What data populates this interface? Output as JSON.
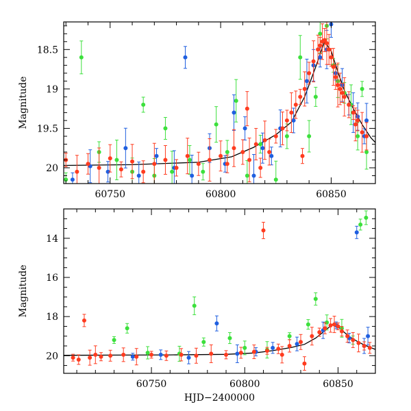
{
  "colors": {
    "red": "#ff3b1f",
    "blue": "#1f5fe0",
    "green": "#3ce03c",
    "model": "#000000"
  },
  "chart_data": [
    {
      "type": "scatter",
      "panel": "top",
      "xlabel": "",
      "ylabel": "Magnitude",
      "xlim": [
        60729,
        60870
      ],
      "ylim": [
        20.2,
        18.15
      ],
      "y_inverted": true,
      "x_ticks": [
        60750,
        60800,
        60850
      ],
      "y_ticks": [
        18.5,
        19,
        19.5,
        20
      ],
      "x_tick_labels": [
        "60750",
        "60800",
        "60850"
      ],
      "y_tick_labels": [
        "18.5",
        "19",
        "19.5",
        "20"
      ],
      "has_error_bars": true,
      "model_curve": {
        "x": [
          60729,
          60760,
          60790,
          60805,
          60815,
          60825,
          60832,
          60838,
          60843,
          60847,
          60850,
          60853,
          60856,
          60860,
          60864,
          60868,
          60870
        ],
        "y": [
          19.97,
          19.96,
          19.93,
          19.86,
          19.74,
          19.58,
          19.42,
          19.1,
          18.72,
          18.4,
          18.52,
          18.78,
          19.02,
          19.25,
          19.45,
          19.62,
          19.68
        ]
      },
      "series": [
        {
          "color": "red",
          "points": [
            [
              60730,
              19.9
            ],
            [
              60735,
              20.05
            ],
            [
              60740,
              19.95
            ],
            [
              60745,
              20.0
            ],
            [
              60750,
              19.88
            ],
            [
              60755,
              20.02
            ],
            [
              60760,
              19.92
            ],
            [
              60765,
              20.05
            ],
            [
              60770,
              19.95
            ],
            [
              60775,
              19.9
            ],
            [
              60780,
              20.0
            ],
            [
              60785,
              19.85
            ],
            [
              60790,
              19.95
            ],
            [
              60795,
              19.9
            ],
            [
              60800,
              19.85
            ],
            [
              60803,
              19.95
            ],
            [
              60806,
              19.75
            ],
            [
              60810,
              19.8
            ],
            [
              60813,
              19.9
            ],
            [
              60816,
              19.7
            ],
            [
              60818,
              20.0
            ],
            [
              60820,
              19.65
            ],
            [
              60822,
              19.8
            ],
            [
              60825,
              19.6
            ],
            [
              60828,
              19.5
            ],
            [
              60830,
              19.4
            ],
            [
              60832,
              19.3
            ],
            [
              60834,
              19.2
            ],
            [
              60836,
              19.1
            ],
            [
              60838,
              19.0
            ],
            [
              60840,
              18.8
            ],
            [
              60842,
              18.65
            ],
            [
              60844,
              18.5
            ],
            [
              60845,
              18.45
            ],
            [
              60846,
              18.4
            ],
            [
              60847,
              18.38
            ],
            [
              60848,
              18.42
            ],
            [
              60849,
              18.5
            ],
            [
              60850,
              18.6
            ],
            [
              60851,
              18.72
            ],
            [
              60852,
              18.85
            ],
            [
              60853,
              18.95
            ],
            [
              60854,
              19.0
            ],
            [
              60855,
              19.05
            ],
            [
              60856,
              19.1
            ],
            [
              60858,
              19.2
            ],
            [
              60860,
              19.3
            ],
            [
              60861,
              19.45
            ],
            [
              60862,
              19.4
            ],
            [
              60864,
              19.55
            ],
            [
              60866,
              19.6
            ],
            [
              60837,
              19.85
            ],
            [
              60812,
              19.25
            ]
          ]
        },
        {
          "color": "blue",
          "points": [
            [
              60733,
              20.15
            ],
            [
              60741,
              19.98
            ],
            [
              60749,
              20.05
            ],
            [
              60757,
              19.75
            ],
            [
              60763,
              20.1
            ],
            [
              60771,
              19.85
            ],
            [
              60779,
              20.0
            ],
            [
              60784,
              18.6
            ],
            [
              60787,
              20.1
            ],
            [
              60795,
              19.75
            ],
            [
              60802,
              19.95
            ],
            [
              60806,
              19.3
            ],
            [
              60811,
              19.5
            ],
            [
              60815,
              20.1
            ],
            [
              60819,
              19.75
            ],
            [
              60823,
              19.85
            ],
            [
              60827,
              19.5
            ],
            [
              60833,
              19.4
            ],
            [
              60839,
              18.9
            ],
            [
              60842,
              18.7
            ],
            [
              60845,
              18.6
            ],
            [
              60848,
              18.5
            ],
            [
              60850,
              18.18
            ],
            [
              60852,
              18.8
            ],
            [
              60855,
              18.95
            ],
            [
              60858,
              19.2
            ],
            [
              60860,
              19.3
            ],
            [
              60862,
              19.35
            ],
            [
              60865,
              19.6
            ],
            [
              60866,
              19.4
            ]
          ]
        },
        {
          "color": "green",
          "points": [
            [
              60730,
              20.15
            ],
            [
              60737,
              18.6
            ],
            [
              60745,
              19.8
            ],
            [
              60753,
              19.9
            ],
            [
              60760,
              20.05
            ],
            [
              60765,
              19.2
            ],
            [
              60770,
              20.1
            ],
            [
              60775,
              19.5
            ],
            [
              60778,
              20.05
            ],
            [
              60786,
              19.9
            ],
            [
              60792,
              20.05
            ],
            [
              60798,
              19.45
            ],
            [
              60803,
              19.8
            ],
            [
              60807,
              19.15
            ],
            [
              60812,
              20.1
            ],
            [
              60818,
              19.7
            ],
            [
              60825,
              20.15
            ],
            [
              60830,
              19.6
            ],
            [
              60836,
              18.6
            ],
            [
              60840,
              19.6
            ],
            [
              60843,
              19.1
            ],
            [
              60845,
              18.3
            ],
            [
              60848,
              18.2
            ],
            [
              60851,
              18.7
            ],
            [
              60853,
              18.9
            ],
            [
              60856,
              19.05
            ],
            [
              60859,
              19.2
            ],
            [
              60862,
              19.6
            ],
            [
              60864,
              19.0
            ],
            [
              60866,
              19.8
            ]
          ]
        }
      ]
    },
    {
      "type": "scatter",
      "panel": "bottom",
      "xlabel": "HJD−2400000",
      "ylabel": "Magnitude",
      "xlim": [
        60703,
        60870
      ],
      "ylim": [
        20.9,
        12.5
      ],
      "y_inverted": true,
      "x_ticks": [
        60750,
        60800,
        60850
      ],
      "y_ticks": [
        14,
        16,
        18,
        20
      ],
      "x_tick_labels": [
        "60750",
        "60800",
        "60850"
      ],
      "y_tick_labels": [
        "14",
        "16",
        "18",
        "20"
      ],
      "has_error_bars": true,
      "model_curve": {
        "x": [
          60703,
          60730,
          60760,
          60790,
          60805,
          60815,
          60825,
          60832,
          60838,
          60843,
          60847,
          60850,
          60853,
          60856,
          60860,
          60864,
          60870
        ],
        "y": [
          19.98,
          19.97,
          19.96,
          19.93,
          19.86,
          19.74,
          19.58,
          19.42,
          19.1,
          18.72,
          18.4,
          18.52,
          18.78,
          19.02,
          19.25,
          19.45,
          19.68
        ]
      },
      "series": [
        {
          "color": "red",
          "points": [
            [
              60708,
              20.1
            ],
            [
              60711,
              20.2
            ],
            [
              60714,
              18.2
            ],
            [
              60717,
              20.1
            ],
            [
              60720,
              19.95
            ],
            [
              60723,
              20.05
            ],
            [
              60728,
              20.0
            ],
            [
              60735,
              19.95
            ],
            [
              60742,
              20.05
            ],
            [
              60750,
              19.95
            ],
            [
              60758,
              20.0
            ],
            [
              60766,
              19.95
            ],
            [
              60774,
              20.0
            ],
            [
              60782,
              19.9
            ],
            [
              60790,
              19.95
            ],
            [
              60798,
              19.85
            ],
            [
              60805,
              19.8
            ],
            [
              60810,
              13.6
            ],
            [
              60812,
              19.75
            ],
            [
              60818,
              19.65
            ],
            [
              60824,
              19.5
            ],
            [
              60830,
              19.3
            ],
            [
              60836,
              19.0
            ],
            [
              60840,
              18.8
            ],
            [
              60843,
              18.6
            ],
            [
              60846,
              18.45
            ],
            [
              60848,
              18.4
            ],
            [
              60850,
              18.5
            ],
            [
              60852,
              18.75
            ],
            [
              60855,
              19.0
            ],
            [
              60858,
              19.2
            ],
            [
              60861,
              19.35
            ],
            [
              60864,
              19.5
            ],
            [
              60867,
              19.6
            ],
            [
              60832,
              20.4
            ],
            [
              60820,
              19.95
            ]
          ]
        },
        {
          "color": "blue",
          "points": [
            [
              60740,
              20.05
            ],
            [
              60755,
              19.95
            ],
            [
              60770,
              20.1
            ],
            [
              60785,
              18.35
            ],
            [
              60796,
              19.9
            ],
            [
              60806,
              19.8
            ],
            [
              60815,
              19.6
            ],
            [
              60828,
              19.4
            ],
            [
              60842,
              18.7
            ],
            [
              60849,
              18.45
            ],
            [
              60856,
              19.1
            ],
            [
              60860,
              13.7
            ],
            [
              60864,
              19.5
            ],
            [
              60866,
              19.0
            ]
          ]
        },
        {
          "color": "green",
          "points": [
            [
              60730,
              19.2
            ],
            [
              60737,
              18.6
            ],
            [
              60748,
              19.85
            ],
            [
              60765,
              19.9
            ],
            [
              60773,
              17.45
            ],
            [
              60778,
              19.3
            ],
            [
              60792,
              19.1
            ],
            [
              60800,
              19.6
            ],
            [
              60812,
              19.7
            ],
            [
              60824,
              19.0
            ],
            [
              60834,
              18.4
            ],
            [
              60838,
              17.1
            ],
            [
              60844,
              18.3
            ],
            [
              60852,
              18.6
            ],
            [
              60858,
              19.2
            ],
            [
              60862,
              13.3
            ],
            [
              60865,
              12.95
            ]
          ]
        }
      ]
    }
  ]
}
